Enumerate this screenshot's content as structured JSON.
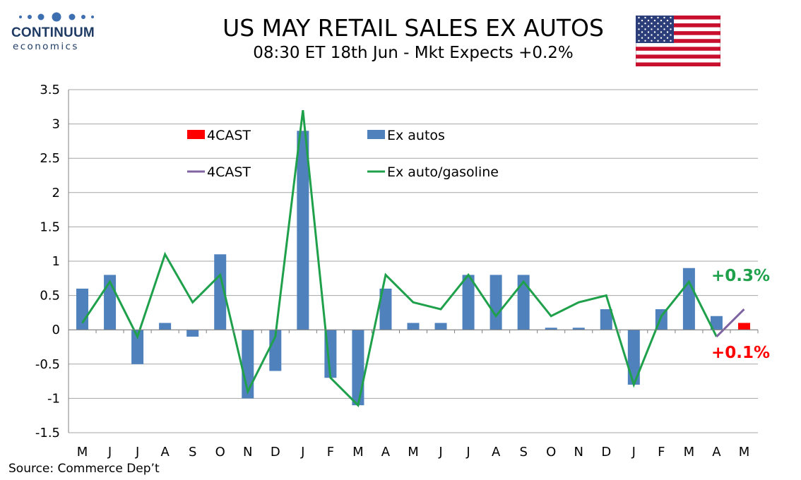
{
  "header": {
    "logo_word": "CONTINUUM",
    "logo_sub": "economics",
    "title": "US MAY RETAIL SALES EX AUTOS",
    "subtitle": "08:30 ET 18th Jun - Mkt Expects +0.2%"
  },
  "flag": {
    "name": "us-flag-icon",
    "stripe_red": "#c8102e",
    "canton_blue": "#2c3e7a"
  },
  "footer": {
    "source": "Source: Commerce Dep’t"
  },
  "chart_data": {
    "type": "bar",
    "categories": [
      "M",
      "J",
      "J",
      "A",
      "S",
      "O",
      "N",
      "D",
      "J",
      "F",
      "M",
      "A",
      "M",
      "J",
      "J",
      "A",
      "S",
      "O",
      "N",
      "D",
      "J",
      "F",
      "M",
      "A",
      "M"
    ],
    "ylim": [
      -1.5,
      3.5
    ],
    "yticks": [
      "3.5",
      "3",
      "2.5",
      "2",
      "1.5",
      "1",
      "0.5",
      "0",
      "-0.5",
      "-1",
      "-1.5"
    ],
    "grid": true,
    "legend_placement": "top-left",
    "series": [
      {
        "name": "Ex autos",
        "kind": "bar",
        "color": "#4f81bd",
        "values": [
          0.6,
          0.8,
          -0.5,
          0.1,
          -0.1,
          1.1,
          -1.0,
          -0.6,
          2.9,
          -0.7,
          -1.1,
          0.6,
          0.1,
          0.1,
          0.8,
          0.8,
          0.8,
          0.03,
          0.03,
          0.3,
          -0.8,
          0.3,
          0.9,
          0.2,
          null
        ]
      },
      {
        "name": "4CAST",
        "kind": "bar",
        "color": "#ff0000",
        "values": [
          null,
          null,
          null,
          null,
          null,
          null,
          null,
          null,
          null,
          null,
          null,
          null,
          null,
          null,
          null,
          null,
          null,
          null,
          null,
          null,
          null,
          null,
          null,
          null,
          0.1
        ]
      },
      {
        "name": "Ex auto/gasoline",
        "kind": "line",
        "color": "#1fa04b",
        "values": [
          0.1,
          0.7,
          -0.1,
          1.1,
          0.4,
          0.8,
          -0.9,
          -0.1,
          3.2,
          -0.7,
          -1.1,
          0.8,
          0.4,
          0.3,
          0.8,
          0.2,
          0.7,
          0.2,
          0.4,
          0.5,
          -0.8,
          0.2,
          0.7,
          -0.1,
          null
        ]
      },
      {
        "name": "4CAST",
        "kind": "line",
        "color": "#8064a2",
        "values": [
          null,
          null,
          null,
          null,
          null,
          null,
          null,
          null,
          null,
          null,
          null,
          null,
          null,
          null,
          null,
          null,
          null,
          null,
          null,
          null,
          null,
          null,
          null,
          -0.1,
          0.3
        ]
      }
    ],
    "annotations": [
      {
        "text": "+0.3%",
        "color": "#1fa04b"
      },
      {
        "text": "+0.1%",
        "color": "#ff0000"
      }
    ]
  }
}
